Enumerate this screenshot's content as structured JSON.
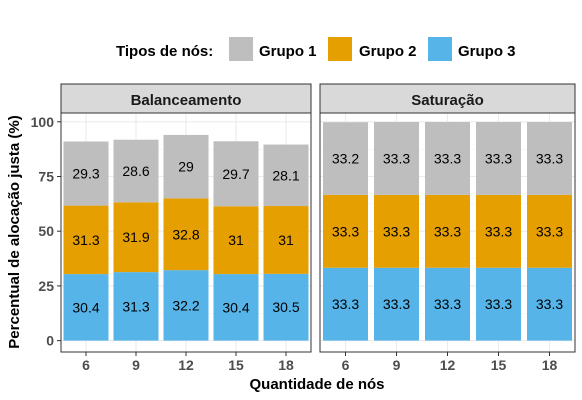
{
  "chart_data": {
    "type": "bar",
    "stacked": true,
    "legend": {
      "title": "Tipos de nós:",
      "position": "top",
      "entries": [
        "Grupo 1",
        "Grupo 2",
        "Grupo 3"
      ]
    },
    "xlabel": "Quantidade de nós",
    "ylabel": "Percentual de alocação justa (%)",
    "ylim": [
      0,
      110
    ],
    "yticks": [
      0,
      25,
      50,
      75,
      100
    ],
    "grid": true,
    "colors": {
      "Grupo 1": "#bebebe",
      "Grupo 2": "#e69f00",
      "Grupo 3": "#56b4e9"
    },
    "panels": [
      {
        "title": "Balanceamento",
        "categories": [
          "6",
          "9",
          "12",
          "15",
          "18"
        ],
        "series": [
          {
            "name": "Grupo 3",
            "values": [
              30.4,
              31.3,
              32.2,
              30.4,
              30.5
            ],
            "labels": [
              "30.4",
              "31.3",
              "32.2",
              "30.4",
              "30.5"
            ]
          },
          {
            "name": "Grupo 2",
            "values": [
              31.3,
              31.9,
              32.8,
              31,
              31
            ],
            "labels": [
              "31.3",
              "31.9",
              "32.8",
              "31",
              "31"
            ]
          },
          {
            "name": "Grupo 1",
            "values": [
              29.3,
              28.6,
              29,
              29.7,
              28.1
            ],
            "labels": [
              "29.3",
              "28.6",
              "29",
              "29.7",
              "28.1"
            ]
          }
        ]
      },
      {
        "title": "Saturação",
        "categories": [
          "6",
          "9",
          "12",
          "15",
          "18"
        ],
        "series": [
          {
            "name": "Grupo 3",
            "values": [
              33.3,
              33.3,
              33.3,
              33.3,
              33.3
            ],
            "labels": [
              "33.3",
              "33.3",
              "33.3",
              "33.3",
              "33.3"
            ]
          },
          {
            "name": "Grupo 2",
            "values": [
              33.3,
              33.3,
              33.3,
              33.3,
              33.3
            ],
            "labels": [
              "33.3",
              "33.3",
              "33.3",
              "33.3",
              "33.3"
            ]
          },
          {
            "name": "Grupo 1",
            "values": [
              33.2,
              33.3,
              33.3,
              33.3,
              33.3
            ],
            "labels": [
              "33.2",
              "33.3",
              "33.3",
              "33.3",
              "33.3"
            ]
          }
        ]
      }
    ]
  }
}
